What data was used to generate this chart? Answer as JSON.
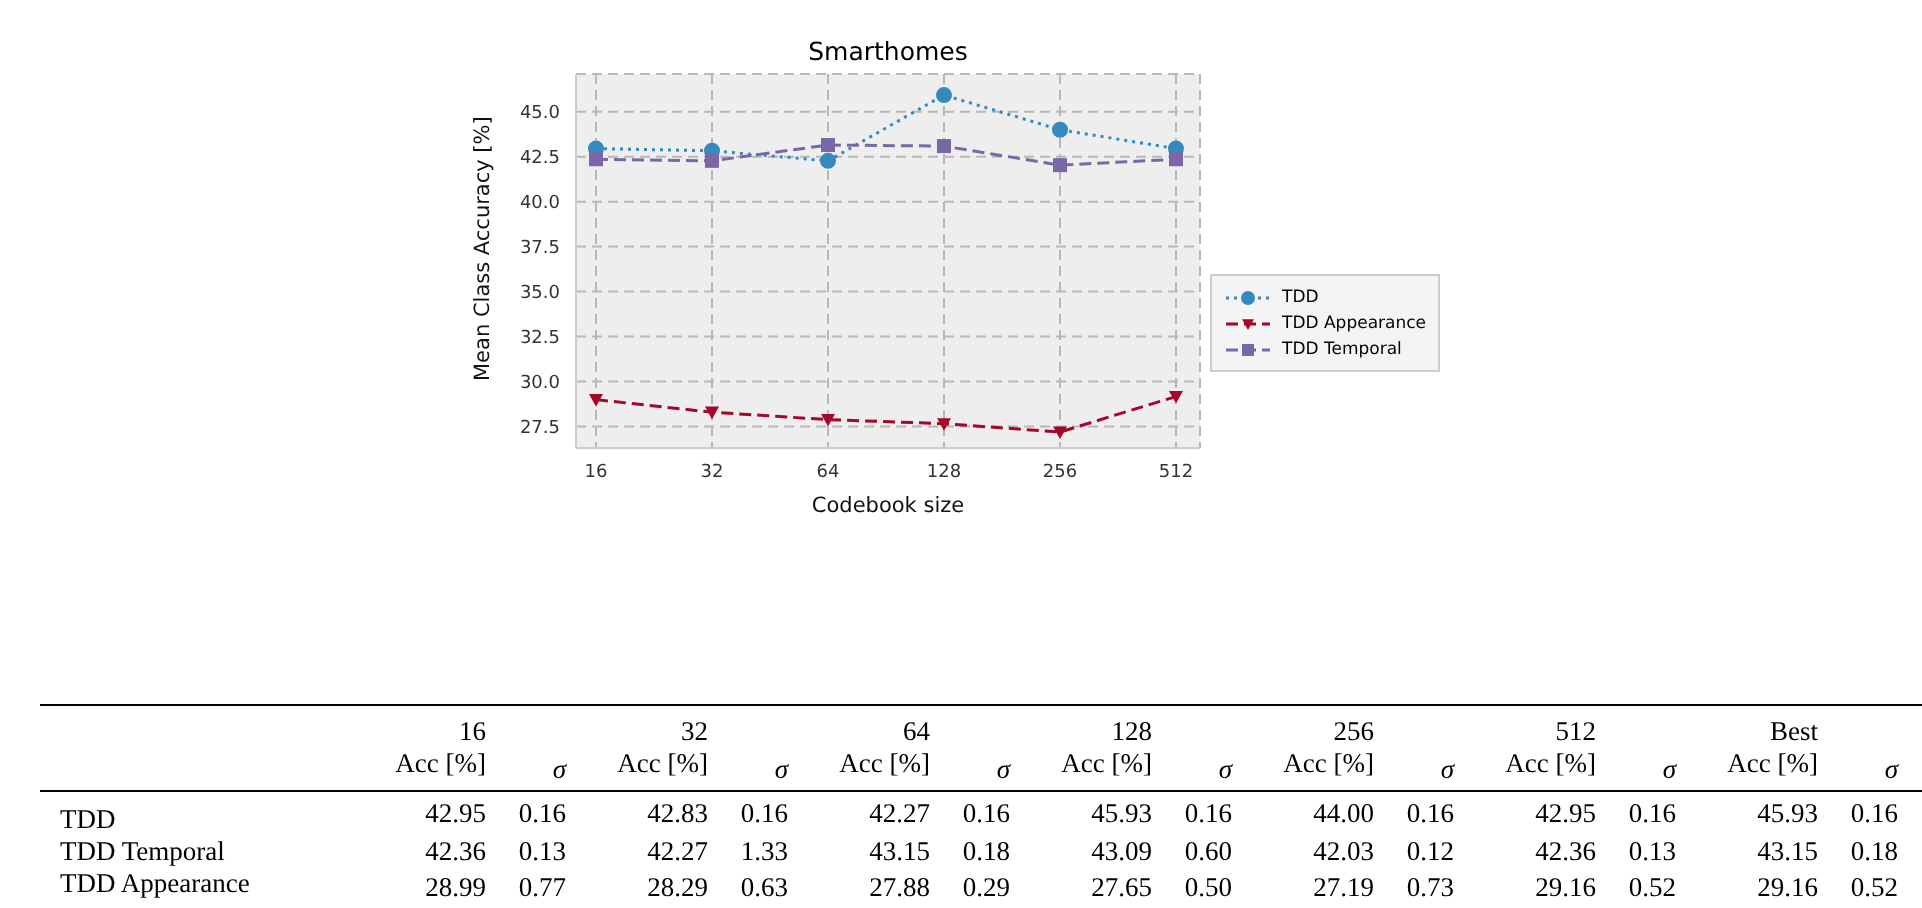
{
  "chart_data": [
    {
      "type": "line",
      "title": "Smarthomes",
      "xlabel": "Codebook size",
      "ylabel": "Mean Class Accuracy [%]",
      "categories": [
        "16",
        "32",
        "64",
        "128",
        "256",
        "512"
      ],
      "series": [
        {
          "name": "TDD",
          "color": "#348abd",
          "marker": "circle",
          "line_style": "dotted",
          "values": [
            42.95,
            42.83,
            42.27,
            45.93,
            44.0,
            42.95
          ]
        },
        {
          "name": "TDD Appearance",
          "color": "#a60628",
          "marker": "triangle",
          "line_style": "dashed",
          "values": [
            28.99,
            28.29,
            27.88,
            27.65,
            27.19,
            29.16
          ]
        },
        {
          "name": "TDD Temporal",
          "color": "#7a68a6",
          "marker": "square",
          "line_style": "dashed",
          "values": [
            42.36,
            42.27,
            43.15,
            43.09,
            42.03,
            42.36
          ]
        }
      ],
      "ylim": [
        26.3,
        47.1
      ],
      "yticks": [
        27.5,
        {
          "value": 30,
          "label": "30.0"
        },
        32.5,
        {
          "value": 35,
          "label": "35.0"
        },
        37.5,
        {
          "value": 40,
          "label": "40.0"
        },
        42.5,
        {
          "value": 45,
          "label": "45.0"
        }
      ],
      "grid": true,
      "legend": "right"
    },
    {
      "type": "other",
      "categories": [
        "Acc [%]",
        "σ",
        "Acc [%]",
        "σ",
        "Acc [%]",
        "σ",
        "Acc [%]",
        "σ",
        "Acc [%]",
        "σ",
        "Acc [%]",
        "σ",
        "Acc [%]",
        "σ"
      ],
      "annotations": [
        "16",
        "32",
        "64",
        "128",
        "256",
        "512",
        "Best"
      ],
      "series": [
        {
          "name": "TDD",
          "values": [
            42.95,
            0.16,
            42.83,
            0.16,
            42.27,
            0.16,
            45.93,
            0.16,
            44,
            0.16,
            42.95,
            0.16,
            45.93,
            0.16
          ],
          "value_labels": [
            "42.95",
            "0.16",
            "42.83",
            "0.16",
            "42.27",
            "0.16",
            "45.93",
            "0.16",
            "44.00",
            "0.16",
            "42.95",
            "0.16",
            "45.93",
            "0.16"
          ]
        },
        {
          "name": "TDD Temporal",
          "values": [
            42.36,
            0.13,
            42.27,
            1.33,
            43.15,
            0.18,
            43.09,
            0.6,
            42.03,
            0.12,
            42.36,
            0.13,
            43.15,
            0.18
          ],
          "value_labels": [
            "42.36",
            "0.13",
            "42.27",
            "1.33",
            "43.15",
            "0.18",
            "43.09",
            "0.60",
            "42.03",
            "0.12",
            "42.36",
            "0.13",
            "43.15",
            "0.18"
          ]
        },
        {
          "name": "TDD Appearance",
          "values": [
            28.99,
            0.77,
            28.29,
            0.63,
            27.88,
            0.29,
            27.65,
            0.5,
            27.19,
            0.73,
            29.16,
            0.52,
            29.16,
            0.52
          ],
          "value_labels": [
            "28.99",
            "0.77",
            "28.29",
            "0.63",
            "27.88",
            "0.29",
            "27.65",
            "0.50",
            "27.19",
            "0.73",
            "29.16",
            "0.52",
            "29.16",
            "0.52"
          ]
        }
      ]
    }
  ]
}
